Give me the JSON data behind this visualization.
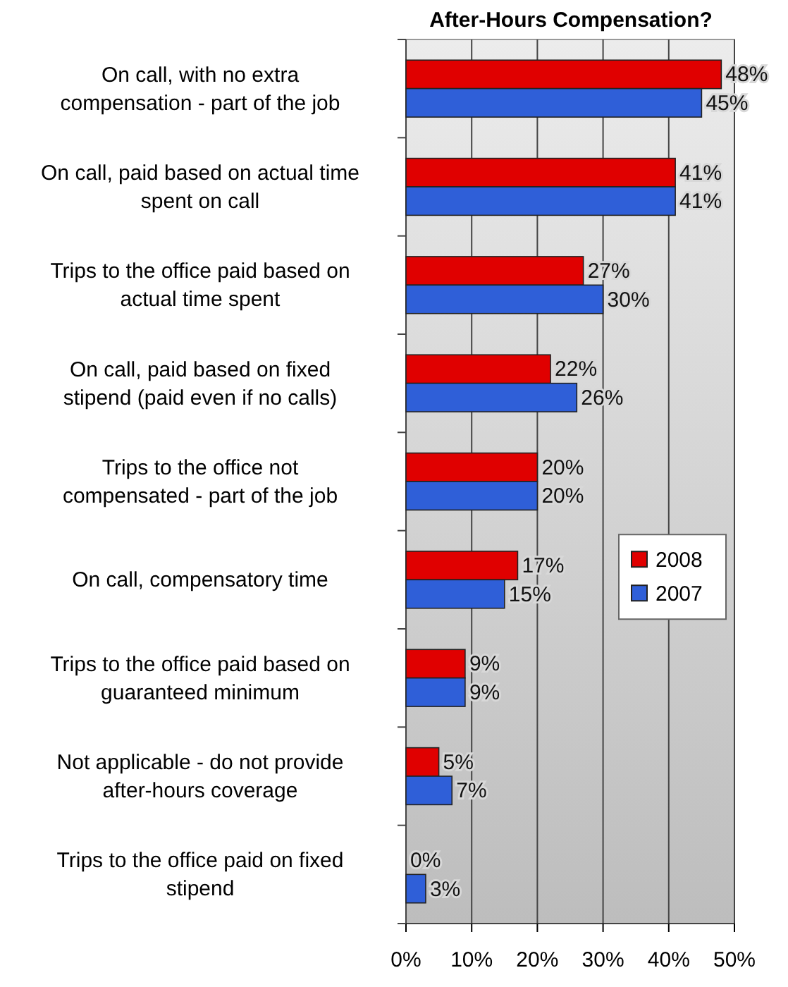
{
  "chart_data": {
    "type": "bar",
    "orientation": "horizontal",
    "title": "After-Hours Compensation?",
    "categories": [
      "On call, with no extra compensation - part of the job",
      "On call, paid based on actual time spent on call",
      "Trips to the office paid based on actual time spent",
      "On call, paid based on fixed stipend (paid even if no calls)",
      "Trips to the office not compensated - part of the job",
      "On call, compensatory time",
      "Trips to the office paid based on guaranteed minimum",
      "Not applicable - do not provide after-hours coverage",
      "Trips to the office paid on fixed stipend"
    ],
    "series": [
      {
        "name": "2008",
        "color": "#e00000",
        "values": [
          48,
          41,
          27,
          22,
          20,
          17,
          9,
          5,
          0
        ],
        "value_labels": [
          "48%",
          "41%",
          "27%",
          "22%",
          "20%",
          "17%",
          "9%",
          "5%",
          "0%"
        ]
      },
      {
        "name": "2007",
        "color": "#2f5fd8",
        "values": [
          45,
          41,
          30,
          26,
          20,
          15,
          9,
          7,
          3
        ],
        "value_labels": [
          "45%",
          "41%",
          "30%",
          "26%",
          "20%",
          "15%",
          "9%",
          "7%",
          "3%"
        ]
      }
    ],
    "xlim": [
      0,
      50
    ],
    "xticks": [
      {
        "value": 0,
        "label": "0%"
      },
      {
        "value": 10,
        "label": "10%"
      },
      {
        "value": 20,
        "label": "20%"
      },
      {
        "value": 30,
        "label": "30%"
      },
      {
        "value": 40,
        "label": "40%"
      },
      {
        "value": 50,
        "label": "50%"
      }
    ],
    "grid": "x",
    "legend": "right"
  }
}
